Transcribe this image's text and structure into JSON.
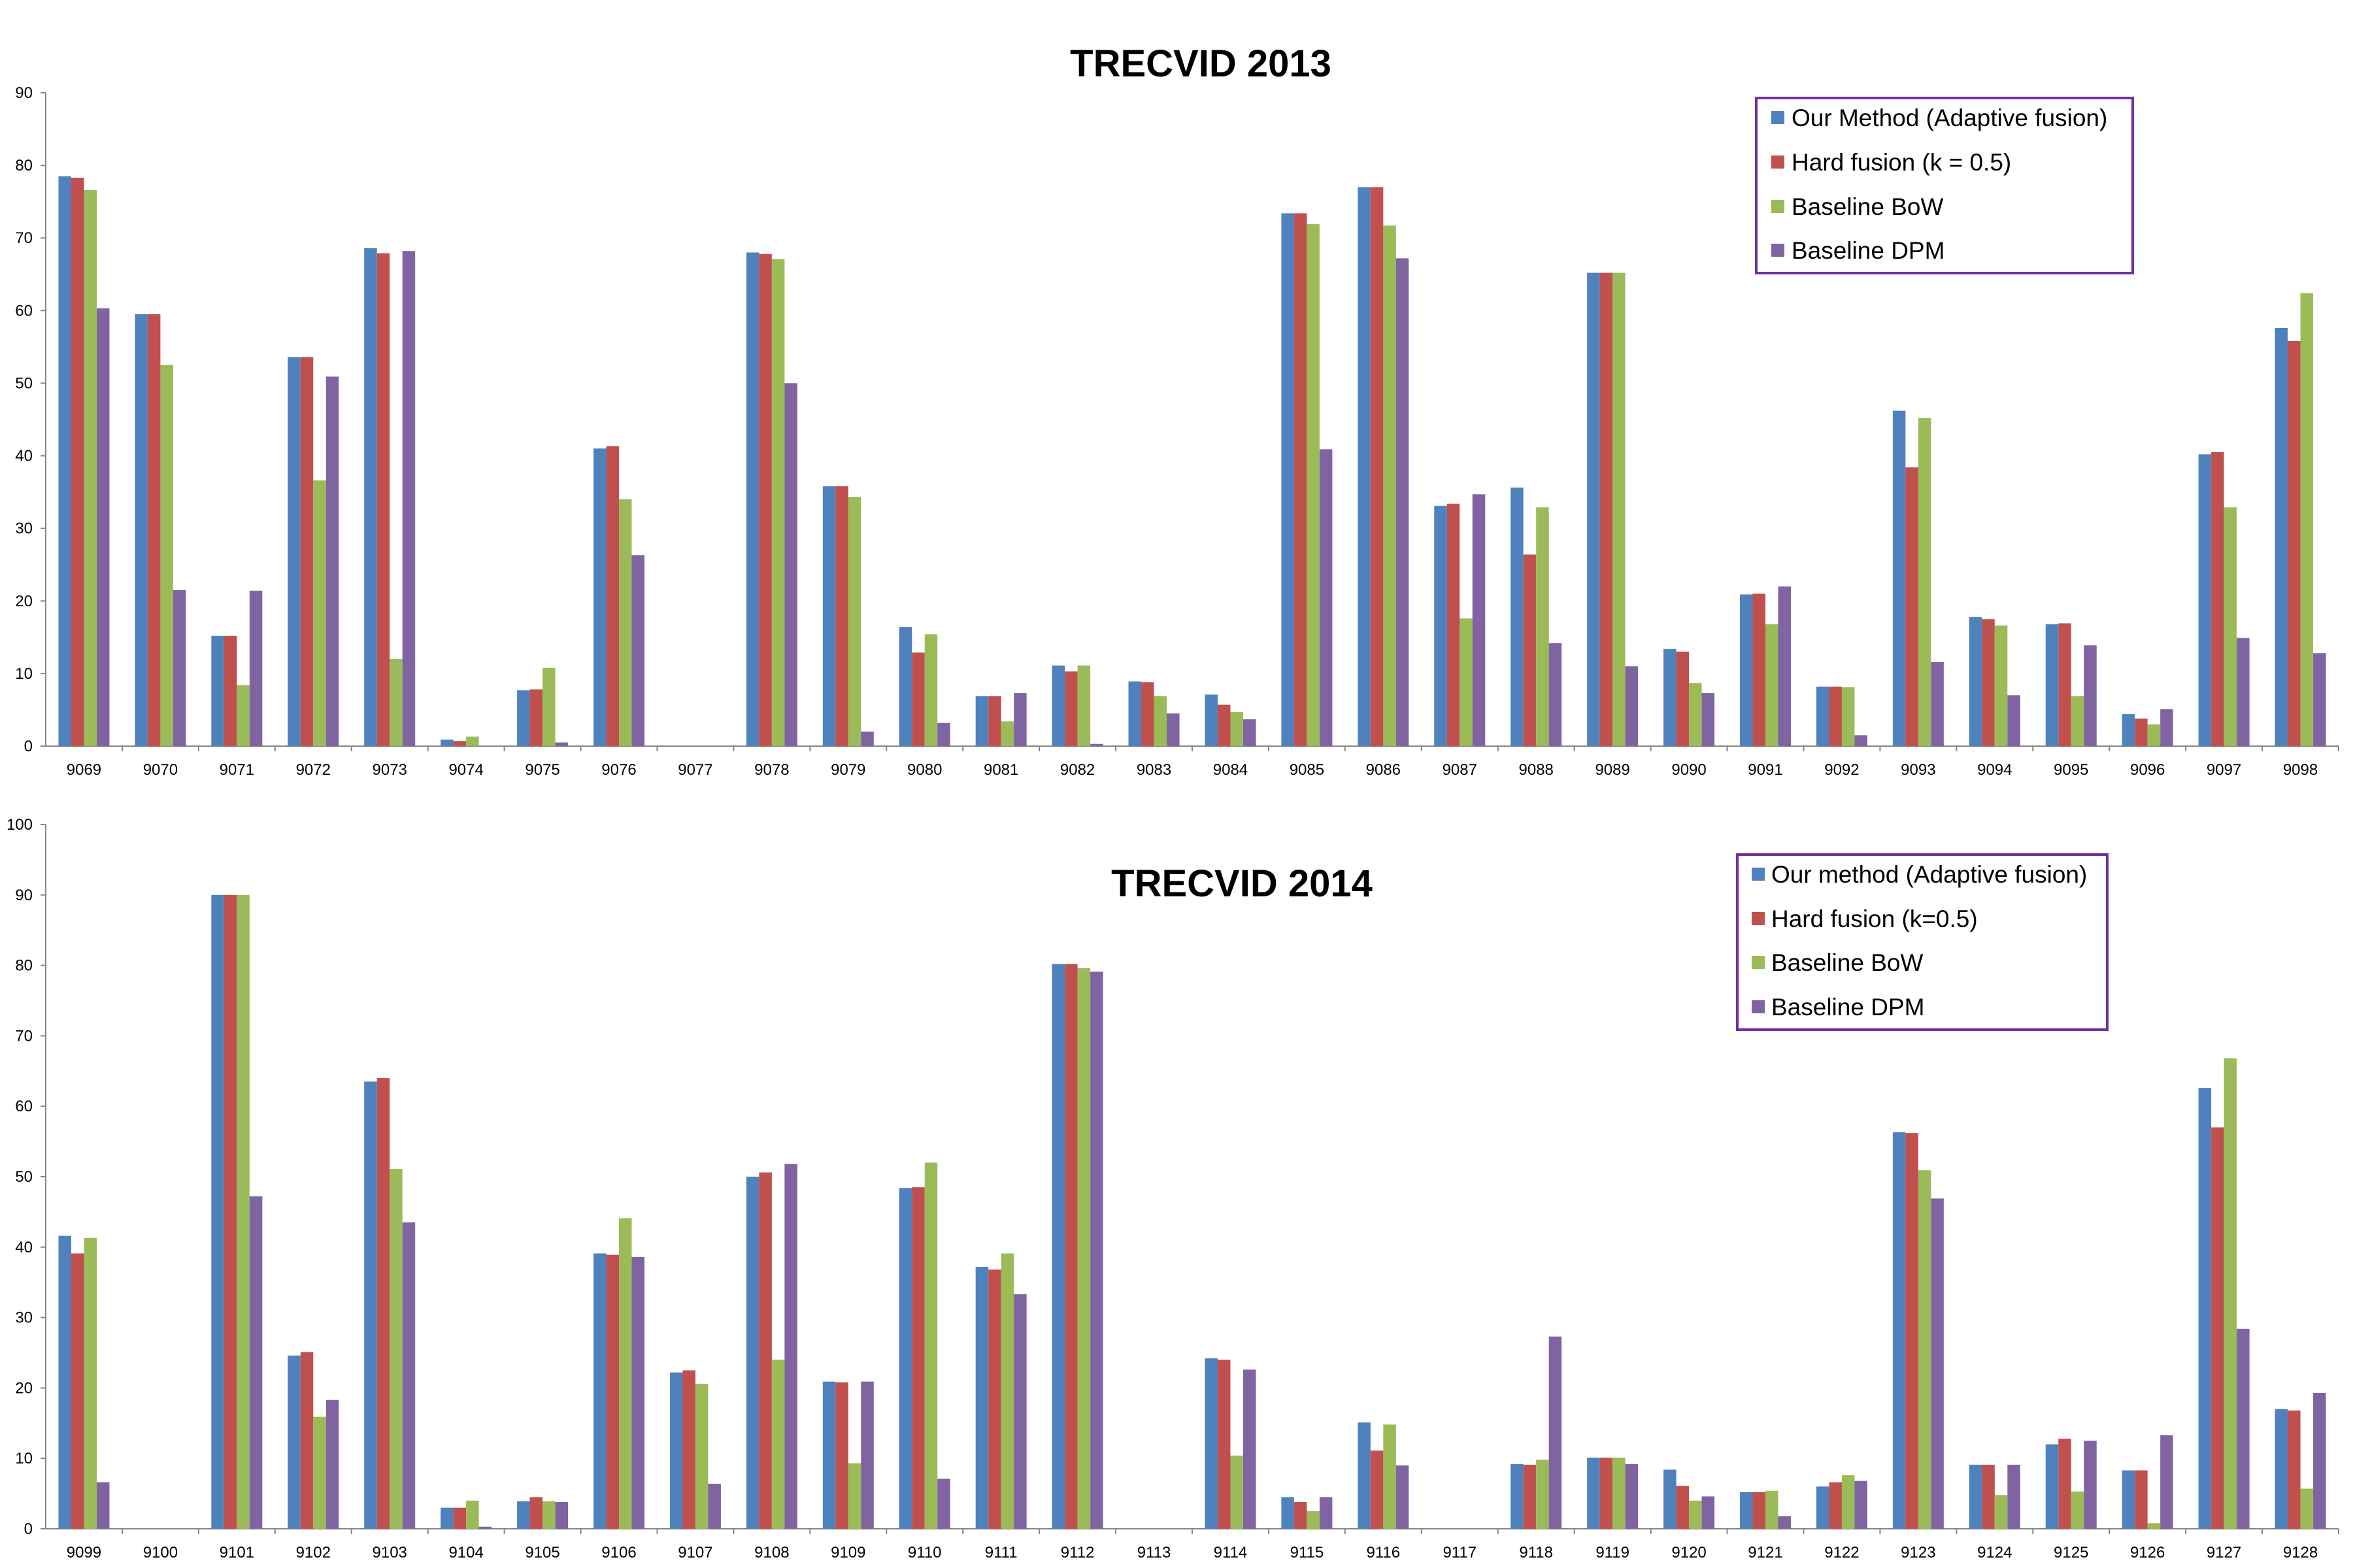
{
  "figure": {
    "charts": [
      {
        "title": "TRECVID 2013",
        "legend": {
          "placement": "top-right",
          "labels": [
            "Our Method (Adaptive fusion)",
            "Hard fusion (k = 0.5)",
            "Baseline BoW",
            "Baseline DPM"
          ]
        }
      },
      {
        "title": "TRECVID 2014",
        "legend": {
          "placement": "top-right",
          "labels": [
            "Our method (Adaptive fusion)",
            "Hard fusion (k=0.5)",
            "Baseline BoW",
            "Baseline DPM"
          ]
        }
      }
    ]
  },
  "colors": {
    "series": [
      "#4f81bd",
      "#c0504d",
      "#9bbb59",
      "#8064a2"
    ],
    "axis": "#868686",
    "legend_border": "#7030a0"
  },
  "chart_data": [
    {
      "type": "bar",
      "title": "TRECVID 2013",
      "xlabel": "",
      "ylabel": "",
      "ylim": [
        0,
        90
      ],
      "yticks": [
        0,
        10,
        20,
        30,
        40,
        50,
        60,
        70,
        80,
        90
      ],
      "grid": false,
      "categories": [
        "9069",
        "9070",
        "9071",
        "9072",
        "9073",
        "9074",
        "9075",
        "9076",
        "9077",
        "9078",
        "9079",
        "9080",
        "9081",
        "9082",
        "9083",
        "9084",
        "9085",
        "9086",
        "9087",
        "9088",
        "9089",
        "9090",
        "9091",
        "9092",
        "9093",
        "9094",
        "9095",
        "9096",
        "9097",
        "9098"
      ],
      "series": [
        {
          "name": "Our Method (Adaptive fusion)",
          "values": [
            78.5,
            59.5,
            15.2,
            53.6,
            68.6,
            0.9,
            7.7,
            41,
            0,
            68,
            35.8,
            16.4,
            6.9,
            11.1,
            8.9,
            7.1,
            73.4,
            77,
            33.1,
            35.6,
            65.2,
            13.4,
            20.9,
            8.2,
            46.2,
            17.8,
            16.8,
            4.4,
            40.2,
            57.6
          ]
        },
        {
          "name": "Hard fusion (k = 0.5)",
          "values": [
            78.3,
            59.5,
            15.2,
            53.6,
            67.9,
            0.7,
            7.8,
            41.3,
            0,
            67.8,
            35.8,
            12.9,
            6.9,
            10.3,
            8.8,
            5.7,
            73.4,
            77,
            33.4,
            26.4,
            65.2,
            13,
            21,
            8.2,
            38.4,
            17.5,
            16.9,
            3.8,
            40.5,
            55.8
          ]
        },
        {
          "name": "Baseline BoW",
          "values": [
            76.6,
            52.5,
            8.4,
            36.6,
            12,
            1.3,
            10.8,
            34,
            0,
            67.1,
            34.3,
            15.4,
            3.4,
            11.1,
            6.9,
            4.7,
            71.9,
            71.7,
            17.6,
            32.9,
            65.2,
            8.7,
            16.8,
            8.1,
            45.2,
            16.6,
            6.9,
            3,
            32.9,
            62.4
          ]
        },
        {
          "name": "Baseline DPM",
          "values": [
            60.3,
            21.5,
            21.4,
            50.9,
            68.2,
            0,
            0.5,
            26.3,
            0,
            50,
            2,
            3.2,
            7.3,
            0.3,
            4.5,
            3.7,
            40.9,
            67.2,
            34.7,
            14.2,
            11,
            7.3,
            22,
            1.5,
            11.6,
            7,
            13.9,
            5.1,
            14.9,
            12.8
          ]
        }
      ]
    },
    {
      "type": "bar",
      "title": "TRECVID 2014",
      "xlabel": "",
      "ylabel": "",
      "ylim": [
        0,
        100
      ],
      "yticks": [
        0,
        10,
        20,
        30,
        40,
        50,
        60,
        70,
        80,
        90,
        100
      ],
      "grid": false,
      "categories": [
        "9099",
        "9100",
        "9101",
        "9102",
        "9103",
        "9104",
        "9105",
        "9106",
        "9107",
        "9108",
        "9109",
        "9110",
        "9111",
        "9112",
        "9113",
        "9114",
        "9115",
        "9116",
        "9117",
        "9118",
        "9119",
        "9120",
        "9121",
        "9122",
        "9123",
        "9124",
        "9125",
        "9126",
        "9127",
        "9128"
      ],
      "series": [
        {
          "name": "Our method (Adaptive fusion)",
          "values": [
            41.6,
            0,
            90,
            24.6,
            63.5,
            3,
            3.9,
            39.1,
            22.2,
            50,
            20.9,
            48.4,
            37.2,
            80.2,
            0,
            24.2,
            4.5,
            15.1,
            0,
            9.2,
            10.1,
            8.4,
            5.2,
            6,
            56.3,
            9.1,
            12,
            8.3,
            62.6,
            17
          ]
        },
        {
          "name": "Hard fusion (k=0.5)",
          "values": [
            39.1,
            0,
            90,
            25.1,
            64,
            3,
            4.5,
            38.9,
            22.5,
            50.6,
            20.8,
            48.5,
            36.8,
            80.2,
            0,
            24,
            3.8,
            11.1,
            0,
            9.1,
            10.1,
            6.1,
            5.2,
            6.6,
            56.2,
            9.1,
            12.8,
            8.3,
            57,
            16.8
          ]
        },
        {
          "name": "Baseline BoW",
          "values": [
            41.3,
            0,
            90,
            15.9,
            51.1,
            4,
            3.9,
            44.1,
            20.6,
            24,
            9.3,
            52,
            39.1,
            79.6,
            0,
            10.4,
            2.5,
            14.8,
            0,
            9.8,
            10.1,
            4,
            5.4,
            7.6,
            50.9,
            4.8,
            5.3,
            0.8,
            66.8,
            5.7
          ]
        },
        {
          "name": "Baseline DPM",
          "values": [
            6.6,
            0,
            47.2,
            18.3,
            43.5,
            0.3,
            3.8,
            38.6,
            6.4,
            51.8,
            20.9,
            7.1,
            33.3,
            79.1,
            0,
            22.6,
            4.5,
            9,
            0,
            27.3,
            9.2,
            4.6,
            1.8,
            6.8,
            46.9,
            9.1,
            12.5,
            13.3,
            28.4,
            19.3
          ]
        }
      ]
    }
  ]
}
